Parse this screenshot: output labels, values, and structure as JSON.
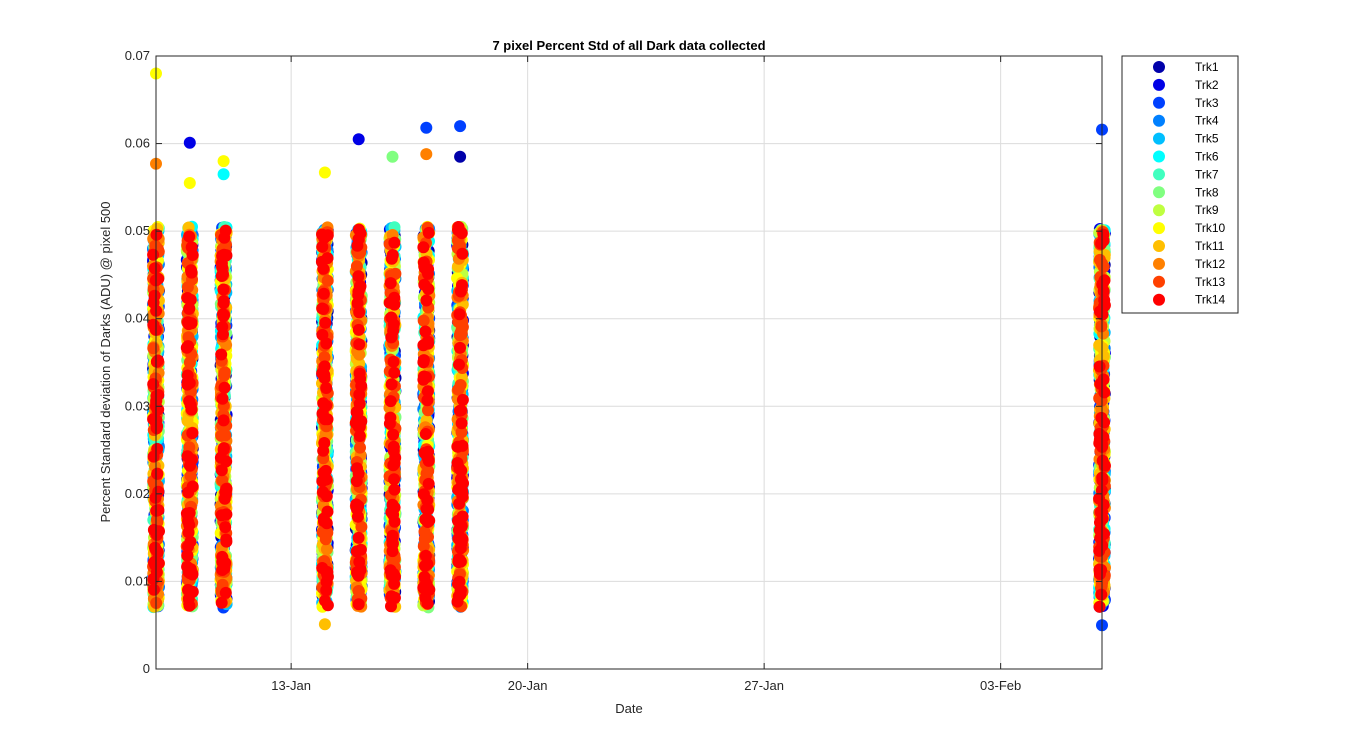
{
  "chart_data": {
    "type": "scatter",
    "title": "7 pixel Percent Std of all Dark data collected",
    "xlabel": "Date",
    "ylabel": "Percent Standard deviation of Darks (ADU) @ pixel 500",
    "xlim": [
      "2019-01-09",
      "2019-02-06"
    ],
    "ylim": [
      0,
      0.07
    ],
    "x_ticks": [
      "2019-01-13",
      "2019-01-20",
      "2019-01-27",
      "2019-02-03"
    ],
    "x_tick_labels": [
      "13-Jan",
      "20-Jan",
      "27-Jan",
      "03-Feb"
    ],
    "y_ticks": [
      0,
      0.01,
      0.02,
      0.03,
      0.04,
      0.05,
      0.06,
      0.07
    ],
    "y_tick_labels": [
      "0",
      "0.01",
      "0.02",
      "0.03",
      "0.04",
      "0.05",
      "0.06",
      "0.07"
    ],
    "grid": true,
    "legend_position": "outside-top-right",
    "series": [
      {
        "name": "Trk1",
        "color": "#0000AA"
      },
      {
        "name": "Trk2",
        "color": "#0000E6"
      },
      {
        "name": "Trk3",
        "color": "#0040FF"
      },
      {
        "name": "Trk4",
        "color": "#0080FF"
      },
      {
        "name": "Trk5",
        "color": "#00BFFF"
      },
      {
        "name": "Trk6",
        "color": "#00FFFF"
      },
      {
        "name": "Trk7",
        "color": "#40FFBF"
      },
      {
        "name": "Trk8",
        "color": "#80FF80"
      },
      {
        "name": "Trk9",
        "color": "#BFFF40"
      },
      {
        "name": "Trk10",
        "color": "#FFFF00"
      },
      {
        "name": "Trk11",
        "color": "#FFBF00"
      },
      {
        "name": "Trk12",
        "color": "#FF8000"
      },
      {
        "name": "Trk13",
        "color": "#FF4000"
      },
      {
        "name": "Trk14",
        "color": "#FF0000"
      }
    ],
    "observation_dates": [
      "2019-01-09",
      "2019-01-10",
      "2019-01-11",
      "2019-01-14",
      "2019-01-15",
      "2019-01-16",
      "2019-01-17",
      "2019-01-18",
      "2019-02-06"
    ],
    "observed_range": [
      0.005,
      0.068
    ],
    "notable_points": [
      {
        "x": "2019-01-09",
        "y": 0.068,
        "series": "Trk10"
      },
      {
        "x": "2019-01-09",
        "y": 0.0577,
        "series": "Trk12"
      },
      {
        "x": "2019-01-10",
        "y": 0.0601,
        "series": "Trk2"
      },
      {
        "x": "2019-01-10",
        "y": 0.0555,
        "series": "Trk10"
      },
      {
        "x": "2019-01-11",
        "y": 0.058,
        "series": "Trk10"
      },
      {
        "x": "2019-01-11",
        "y": 0.0565,
        "series": "Trk6"
      },
      {
        "x": "2019-01-14",
        "y": 0.0567,
        "series": "Trk10"
      },
      {
        "x": "2019-01-14",
        "y": 0.0051,
        "series": "Trk11"
      },
      {
        "x": "2019-01-15",
        "y": 0.0605,
        "series": "Trk2"
      },
      {
        "x": "2019-01-15",
        "y": 0.0074,
        "series": "Trk14"
      },
      {
        "x": "2019-01-16",
        "y": 0.0585,
        "series": "Trk8"
      },
      {
        "x": "2019-01-17",
        "y": 0.0618,
        "series": "Trk3"
      },
      {
        "x": "2019-01-17",
        "y": 0.0588,
        "series": "Trk12"
      },
      {
        "x": "2019-01-18",
        "y": 0.062,
        "series": "Trk3"
      },
      {
        "x": "2019-01-18",
        "y": 0.0585,
        "series": "Trk1"
      },
      {
        "x": "2019-02-06",
        "y": 0.0616,
        "series": "Trk3"
      },
      {
        "x": "2019-02-06",
        "y": 0.005,
        "series": "Trk3"
      }
    ]
  }
}
